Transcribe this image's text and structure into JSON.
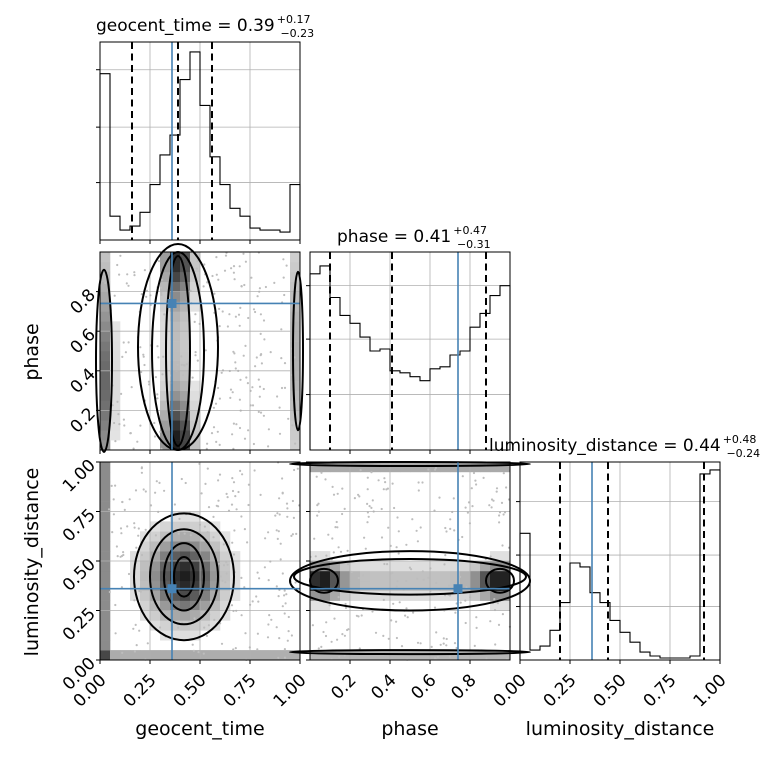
{
  "chart_data": {
    "type": "corner",
    "parameters": [
      "geocent_time",
      "phase",
      "luminosity_distance"
    ],
    "axis_labels": {
      "geocent_time": "geocent_time",
      "phase": "phase",
      "luminosity_distance": "luminosity_distance"
    },
    "ranges": {
      "geocent_time": [
        0.0,
        1.0
      ],
      "phase": [
        0.0,
        1.0
      ],
      "luminosity_distance": [
        0.0,
        1.0
      ]
    },
    "truths": {
      "geocent_time": 0.36,
      "phase": 0.74,
      "luminosity_distance": 0.36
    },
    "summaries": {
      "geocent_time": {
        "name": "geocent_time",
        "median": "0.39",
        "plus": "+0.17",
        "minus": "−0.23",
        "quantiles": [
          0.16,
          0.39,
          0.56
        ]
      },
      "phase": {
        "name": "phase",
        "median": "0.41",
        "plus": "+0.47",
        "minus": "−0.31",
        "quantiles": [
          0.1,
          0.41,
          0.88
        ]
      },
      "luminosity_distance": {
        "name": "luminosity_distance",
        "median": "0.44",
        "plus": "+0.48",
        "minus": "−0.24",
        "quantiles": [
          0.2,
          0.44,
          0.92
        ]
      }
    },
    "histograms": {
      "geocent_time": [
        0.84,
        0.12,
        0.05,
        0.07,
        0.14,
        0.28,
        0.43,
        0.53,
        0.81,
        0.95,
        0.68,
        0.42,
        0.28,
        0.16,
        0.12,
        0.06,
        0.05,
        0.05,
        0.04,
        0.28
      ],
      "phase": [
        0.89,
        0.93,
        0.77,
        0.68,
        0.64,
        0.57,
        0.5,
        0.51,
        0.4,
        0.39,
        0.37,
        0.35,
        0.41,
        0.42,
        0.48,
        0.5,
        0.62,
        0.69,
        0.78,
        0.83
      ],
      "luminosity_distance": [
        0.64,
        0.05,
        0.07,
        0.15,
        0.29,
        0.49,
        0.47,
        0.34,
        0.29,
        0.2,
        0.14,
        0.09,
        0.04,
        0.02,
        0.01,
        0.01,
        0.01,
        0.02,
        0.94,
        0.96
      ]
    },
    "hist_yticks": {
      "geocent_time": [
        0.29,
        0.57,
        0.86
      ],
      "phase": [
        0.28,
        0.56,
        0.83
      ],
      "luminosity_distance": [
        0.27,
        0.53,
        0.8
      ]
    },
    "ticks": {
      "geocent_time": [
        0.0,
        0.25,
        0.5,
        0.75,
        1.0
      ],
      "phase": [
        0.2,
        0.4,
        0.6,
        0.8
      ],
      "luminosity_distance": [
        0.0,
        0.25,
        0.5,
        0.75,
        1.0
      ]
    },
    "tick_labels": {
      "geocent_time": [
        "0.00",
        "0.25",
        "0.50",
        "0.75",
        "1.00"
      ],
      "phase": [
        "0.2",
        "0.4",
        "0.6",
        "0.8"
      ],
      "luminosity_distance": [
        "0.00",
        "0.25",
        "0.50",
        "0.75",
        "1.00"
      ]
    },
    "grid": true,
    "truth_color": "#4682b4",
    "scatter_color": "#bdbdbd",
    "density_colormap": "greys"
  }
}
